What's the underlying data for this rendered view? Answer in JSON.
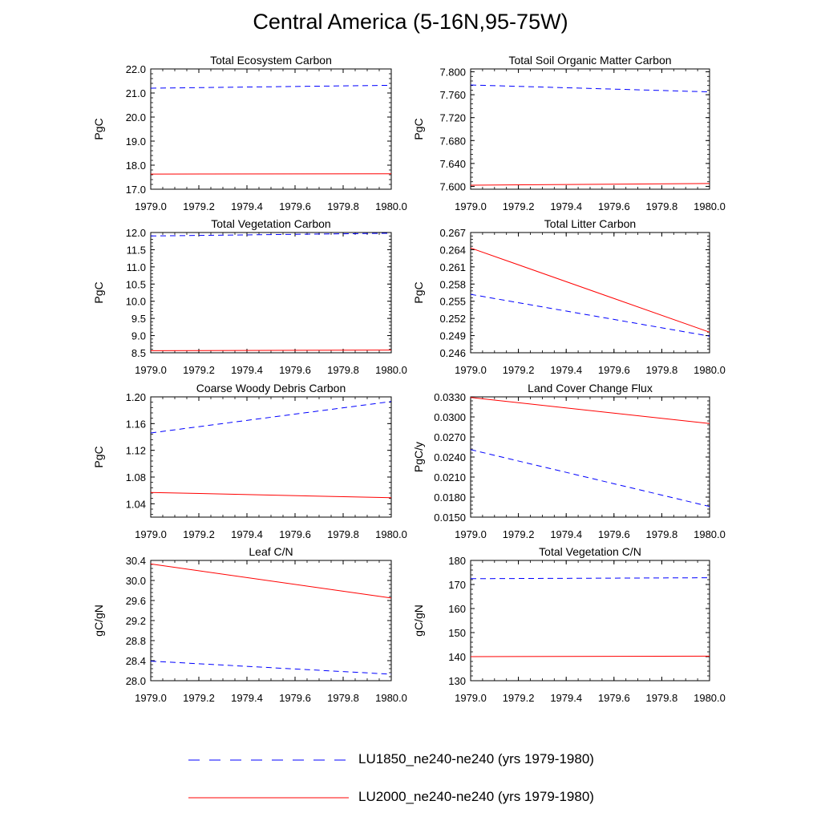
{
  "figure": {
    "title": "Central America (5-16N,95-75W)"
  },
  "legend": {
    "position": "bottom-center",
    "entries": [
      {
        "label": "LU1850_ne240-ne240 (yrs 1979-1980)",
        "color": "#0000ff",
        "style": "dashed"
      },
      {
        "label": "LU2000_ne240-ne240 (yrs 1979-1980)",
        "color": "#ff0000",
        "style": "solid"
      }
    ]
  },
  "chart_data": [
    {
      "type": "line",
      "title": "Total Ecosystem Carbon",
      "xlabel": "",
      "ylabel": "PgC",
      "xlim": [
        1979.0,
        1980.0
      ],
      "ylim": [
        17.0,
        22.0
      ],
      "xticks": [
        "1979.0",
        "1979.2",
        "1979.4",
        "1979.6",
        "1979.8",
        "1980.0"
      ],
      "yticks": [
        "17.0",
        "18.0",
        "19.0",
        "20.0",
        "21.0",
        "22.0"
      ],
      "grid": false,
      "x": [
        1979.0,
        1980.0
      ],
      "series": [
        {
          "name": "LU1850_ne240-ne240 (yrs 1979-1980)",
          "values": [
            21.2,
            21.32
          ],
          "color": "#0000ff",
          "dash": true
        },
        {
          "name": "LU2000_ne240-ne240 (yrs 1979-1980)",
          "values": [
            17.63,
            17.64
          ],
          "color": "#ff0000",
          "dash": false
        }
      ]
    },
    {
      "type": "line",
      "title": "Total Soil Organic Matter Carbon",
      "xlabel": "",
      "ylabel": "PgC",
      "xlim": [
        1979.0,
        1980.0
      ],
      "ylim": [
        7.595,
        7.805
      ],
      "xticks": [
        "1979.0",
        "1979.2",
        "1979.4",
        "1979.6",
        "1979.8",
        "1980.0"
      ],
      "yticks": [
        "7.600",
        "7.640",
        "7.680",
        "7.720",
        "7.760",
        "7.800"
      ],
      "grid": false,
      "x": [
        1979.0,
        1980.0
      ],
      "series": [
        {
          "name": "LU1850_ne240-ne240 (yrs 1979-1980)",
          "values": [
            7.777,
            7.765
          ],
          "color": "#0000ff",
          "dash": true
        },
        {
          "name": "LU2000_ne240-ne240 (yrs 1979-1980)",
          "values": [
            7.602,
            7.605
          ],
          "color": "#ff0000",
          "dash": false
        }
      ]
    },
    {
      "type": "line",
      "title": "Total Vegetation Carbon",
      "xlabel": "",
      "ylabel": "PgC",
      "xlim": [
        1979.0,
        1980.0
      ],
      "ylim": [
        8.5,
        12.0
      ],
      "xticks": [
        "1979.0",
        "1979.2",
        "1979.4",
        "1979.6",
        "1979.8",
        "1980.0"
      ],
      "yticks": [
        "8.5",
        "9.0",
        "9.5",
        "10.0",
        "10.5",
        "11.0",
        "11.5",
        "12.0"
      ],
      "grid": false,
      "x": [
        1979.0,
        1980.0
      ],
      "series": [
        {
          "name": "LU1850_ne240-ne240 (yrs 1979-1980)",
          "values": [
            11.9,
            11.98
          ],
          "color": "#0000ff",
          "dash": true
        },
        {
          "name": "LU2000_ne240-ne240 (yrs 1979-1980)",
          "values": [
            8.56,
            8.58
          ],
          "color": "#ff0000",
          "dash": false
        }
      ]
    },
    {
      "type": "line",
      "title": "Total Litter Carbon",
      "xlabel": "",
      "ylabel": "PgC",
      "xlim": [
        1979.0,
        1980.0
      ],
      "ylim": [
        0.246,
        0.267
      ],
      "xticks": [
        "1979.0",
        "1979.2",
        "1979.4",
        "1979.6",
        "1979.8",
        "1980.0"
      ],
      "yticks": [
        "0.246",
        "0.249",
        "0.252",
        "0.255",
        "0.258",
        "0.261",
        "0.264",
        "0.267"
      ],
      "grid": false,
      "x": [
        1979.0,
        1980.0
      ],
      "series": [
        {
          "name": "LU1850_ne240-ne240 (yrs 1979-1980)",
          "values": [
            0.2562,
            0.2489
          ],
          "color": "#0000ff",
          "dash": true
        },
        {
          "name": "LU2000_ne240-ne240 (yrs 1979-1980)",
          "values": [
            0.2643,
            0.2496
          ],
          "color": "#ff0000",
          "dash": false
        }
      ]
    },
    {
      "type": "line",
      "title": "Coarse Woody Debris Carbon",
      "xlabel": "",
      "ylabel": "PgC",
      "xlim": [
        1979.0,
        1980.0
      ],
      "ylim": [
        1.02,
        1.2
      ],
      "xticks": [
        "1979.0",
        "1979.2",
        "1979.4",
        "1979.6",
        "1979.8",
        "1980.0"
      ],
      "yticks": [
        "1.04",
        "1.08",
        "1.12",
        "1.16",
        "1.20"
      ],
      "grid": false,
      "x": [
        1979.0,
        1980.0
      ],
      "series": [
        {
          "name": "LU1850_ne240-ne240 (yrs 1979-1980)",
          "values": [
            1.146,
            1.193
          ],
          "color": "#0000ff",
          "dash": true
        },
        {
          "name": "LU2000_ne240-ne240 (yrs 1979-1980)",
          "values": [
            1.057,
            1.049
          ],
          "color": "#ff0000",
          "dash": false
        }
      ]
    },
    {
      "type": "line",
      "title": "Land Cover Change Flux",
      "xlabel": "",
      "ylabel": "PgC/y",
      "xlim": [
        1979.0,
        1980.0
      ],
      "ylim": [
        0.015,
        0.033
      ],
      "xticks": [
        "1979.0",
        "1979.2",
        "1979.4",
        "1979.6",
        "1979.8",
        "1980.0"
      ],
      "yticks": [
        "0.0150",
        "0.0180",
        "0.0210",
        "0.0240",
        "0.0270",
        "0.0300",
        "0.0330"
      ],
      "grid": false,
      "x": [
        1979.0,
        1980.0
      ],
      "series": [
        {
          "name": "LU1850_ne240-ne240 (yrs 1979-1980)",
          "values": [
            0.0251,
            0.0166
          ],
          "color": "#0000ff",
          "dash": true
        },
        {
          "name": "LU2000_ne240-ne240 (yrs 1979-1980)",
          "values": [
            0.0329,
            0.029
          ],
          "color": "#ff0000",
          "dash": false
        }
      ]
    },
    {
      "type": "line",
      "title": "Leaf C/N",
      "xlabel": "",
      "ylabel": "gC/gN",
      "xlim": [
        1979.0,
        1980.0
      ],
      "ylim": [
        28.0,
        30.4
      ],
      "xticks": [
        "1979.0",
        "1979.2",
        "1979.4",
        "1979.6",
        "1979.8",
        "1980.0"
      ],
      "yticks": [
        "28.0",
        "28.4",
        "28.8",
        "29.2",
        "29.6",
        "30.0",
        "30.4"
      ],
      "grid": false,
      "x": [
        1979.0,
        1980.0
      ],
      "series": [
        {
          "name": "LU1850_ne240-ne240 (yrs 1979-1980)",
          "values": [
            28.39,
            28.13
          ],
          "color": "#0000ff",
          "dash": true
        },
        {
          "name": "LU2000_ne240-ne240 (yrs 1979-1980)",
          "values": [
            30.33,
            29.65
          ],
          "color": "#ff0000",
          "dash": false
        }
      ]
    },
    {
      "type": "line",
      "title": "Total Vegetation C/N",
      "xlabel": "",
      "ylabel": "gC/gN",
      "xlim": [
        1979.0,
        1980.0
      ],
      "ylim": [
        130,
        180
      ],
      "xticks": [
        "1979.0",
        "1979.2",
        "1979.4",
        "1979.6",
        "1979.8",
        "1980.0"
      ],
      "yticks": [
        "130",
        "140",
        "150",
        "160",
        "170",
        "180"
      ],
      "grid": false,
      "x": [
        1979.0,
        1980.0
      ],
      "series": [
        {
          "name": "LU1850_ne240-ne240 (yrs 1979-1980)",
          "values": [
            172.4,
            172.8
          ],
          "color": "#0000ff",
          "dash": true
        },
        {
          "name": "LU2000_ne240-ne240 (yrs 1979-1980)",
          "values": [
            140.0,
            140.2
          ],
          "color": "#ff0000",
          "dash": false
        }
      ]
    }
  ]
}
